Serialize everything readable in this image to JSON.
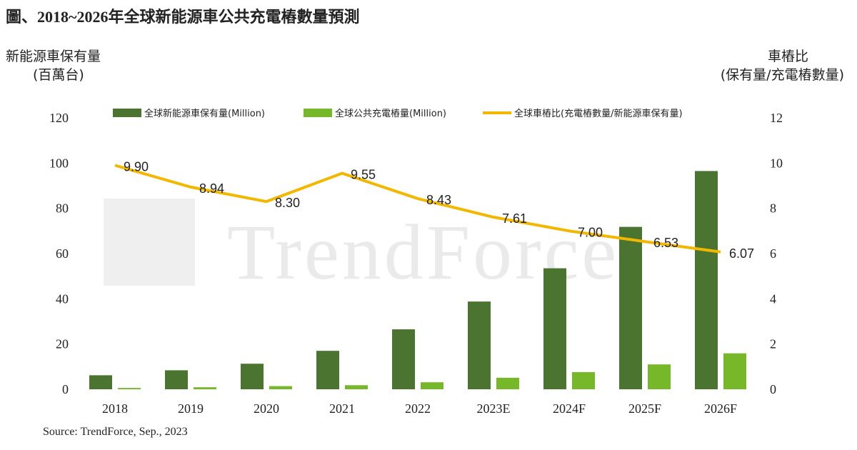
{
  "title": "圖、2018~2026年全球新能源車公共充電樁數量預測",
  "source": "Source: TrendForce, Sep., 2023",
  "watermark": "TrendForce",
  "colors": {
    "ev_stock": "#4a7430",
    "public_chargers": "#76b82a",
    "ratio": "#f2b700"
  },
  "chart_data": {
    "type": "bar",
    "categories": [
      "2018",
      "2019",
      "2020",
      "2021",
      "2022",
      "2023E",
      "2024F",
      "2025F",
      "2026F"
    ],
    "yleft": {
      "label_line1": "新能源車保有量",
      "label_line2": "(百萬台)",
      "ylim": [
        0,
        120
      ],
      "ticks": [
        "0",
        "20",
        "40",
        "60",
        "80",
        "100",
        "120"
      ]
    },
    "yright": {
      "label_line1": "車樁比",
      "label_line2": "(保有量/充電樁數量)",
      "ylim": [
        0,
        12
      ],
      "ticks": [
        "0",
        "2",
        "4",
        "6",
        "8",
        "10",
        "12"
      ]
    },
    "series": [
      {
        "name": "全球新能源車保有量(Million)",
        "type": "bar",
        "axis": "left",
        "values": [
          6.2,
          8.4,
          11.3,
          17.0,
          26.5,
          38.8,
          53.5,
          71.8,
          96.5
        ]
      },
      {
        "name": "全球公共充電樁量(Million)",
        "type": "bar",
        "axis": "left",
        "values": [
          0.6,
          0.9,
          1.4,
          1.8,
          3.1,
          5.1,
          7.6,
          11.0,
          15.9
        ]
      },
      {
        "name": "全球車樁比(充電樁數量/新能源車保有量)",
        "type": "line",
        "axis": "right",
        "values": [
          9.9,
          8.94,
          8.3,
          9.55,
          8.43,
          7.61,
          7.0,
          6.53,
          6.07
        ],
        "labels": [
          "9.90",
          "8.94",
          "8.30",
          "9.55",
          "8.43",
          "7.61",
          "7.00",
          "6.53",
          "6.07"
        ]
      }
    ],
    "legend_position": "top",
    "grid": false
  }
}
